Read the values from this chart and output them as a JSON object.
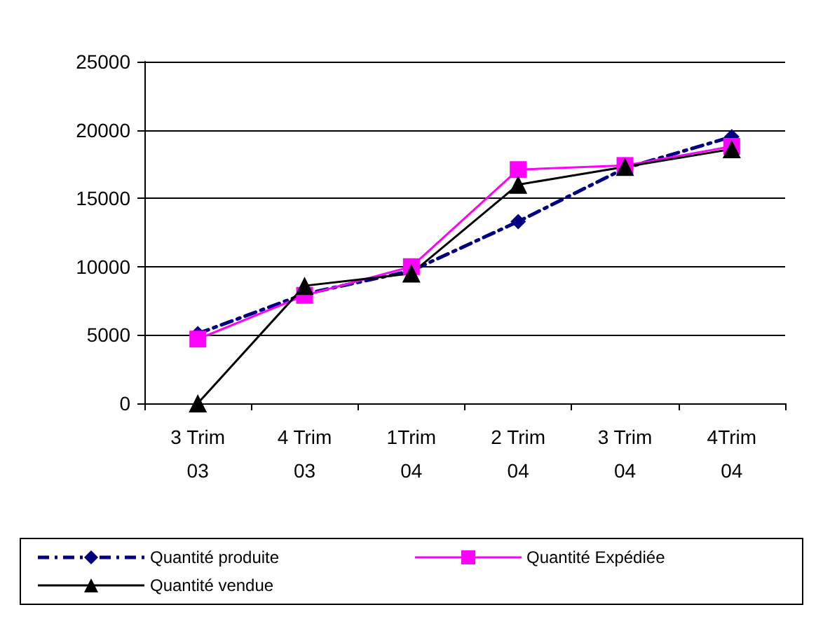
{
  "chart_data": {
    "type": "line",
    "categories": [
      "3 Trim 03",
      "4 Trim 03",
      "1Trim 04",
      "2 Trim 04",
      "3 Trim 04",
      "4Trim 04"
    ],
    "series": [
      {
        "name": "Quantité produite",
        "color": "#000080",
        "marker": "diamond",
        "line_style": "dashed",
        "values": [
          5100,
          8000,
          9700,
          13300,
          17200,
          19500
        ]
      },
      {
        "name": "Quantité Expédiée",
        "color": "#ff00ff",
        "marker": "square",
        "line_style": "solid",
        "values": [
          4700,
          7900,
          10000,
          17100,
          17400,
          18800
        ]
      },
      {
        "name": "Quantité vendue",
        "color": "#000000",
        "marker": "triangle",
        "line_style": "solid",
        "values": [
          0,
          8600,
          9500,
          16000,
          17300,
          18600
        ]
      }
    ],
    "ylim": [
      0,
      25000
    ],
    "yticks": [
      0,
      5000,
      10000,
      15000,
      20000,
      25000
    ],
    "grid": "y",
    "legend": "bottom"
  }
}
